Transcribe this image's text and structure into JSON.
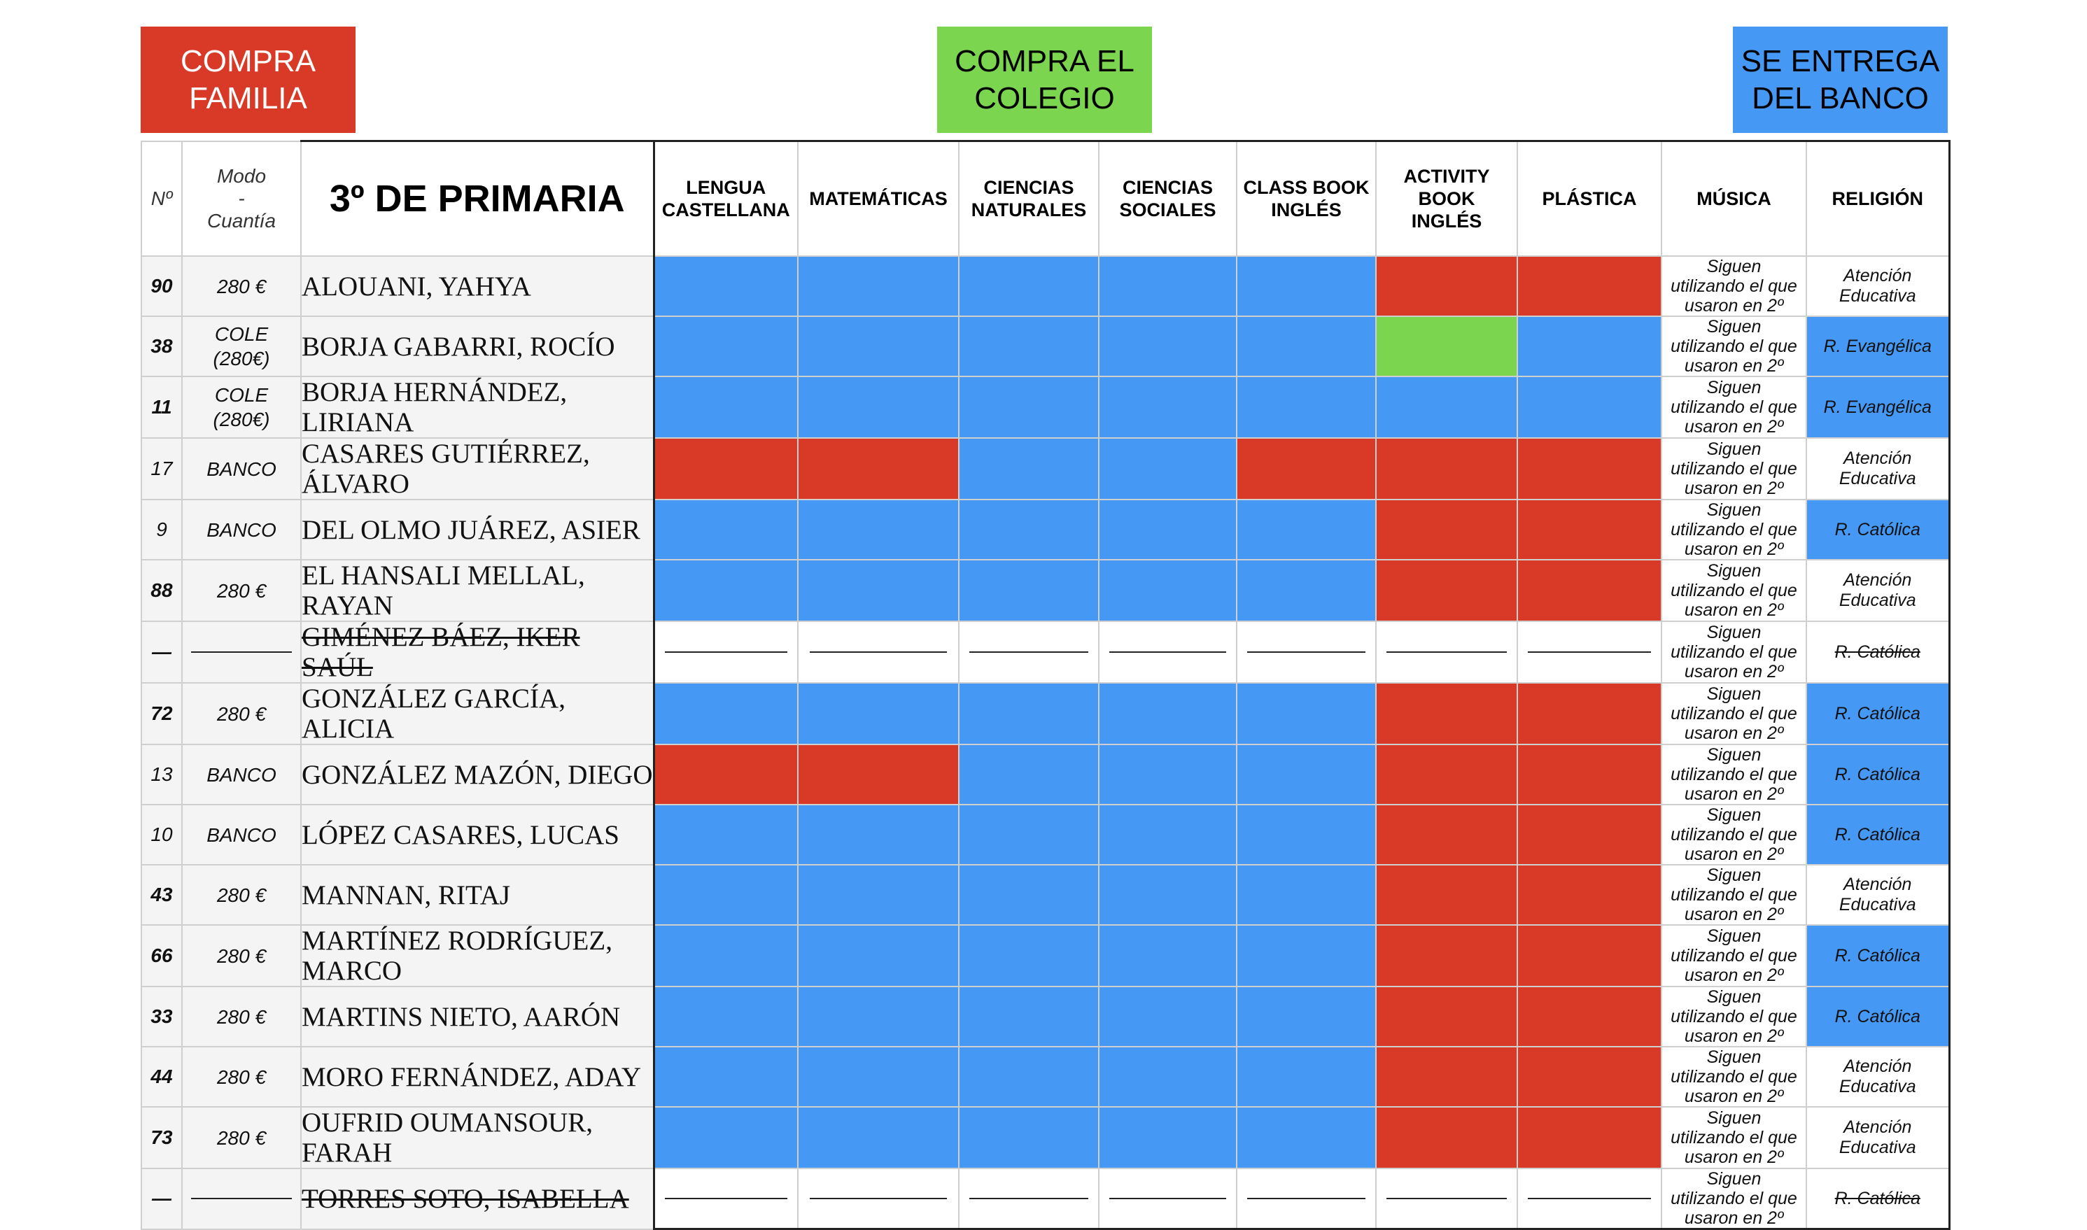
{
  "legend": [
    {
      "label_line1": "COMPRA",
      "label_line2": "FAMILIA",
      "color": "#d93a28"
    },
    {
      "label_line1": "COMPRA EL",
      "label_line2": "COLEGIO",
      "color": "#7bd54f"
    },
    {
      "label_line1": "SE ENTREGA",
      "label_line2": "DEL BANCO",
      "color": "#4598f4"
    }
  ],
  "header": {
    "num": "Nº",
    "mode_line1": "Modo",
    "mode_line2": "-",
    "mode_line3": "Cuantía",
    "course": "3º DE PRIMARIA",
    "subjects": [
      {
        "line1": "LENGUA",
        "line2": "CASTELLANA",
        "line3": ""
      },
      {
        "line1": "MATEMÁTICAS",
        "line2": "",
        "line3": ""
      },
      {
        "line1": "CIENCIAS",
        "line2": "NATURALES",
        "line3": ""
      },
      {
        "line1": "CIENCIAS",
        "line2": "SOCIALES",
        "line3": ""
      },
      {
        "line1": "CLASS BOOK",
        "line2": "INGLÉS",
        "line3": ""
      },
      {
        "line1": "ACTIVITY",
        "line2": "BOOK",
        "line3": "INGLÉS"
      },
      {
        "line1": "PLÁSTICA",
        "line2": "",
        "line3": ""
      },
      {
        "line1": "MÚSICA",
        "line2": "",
        "line3": ""
      },
      {
        "line1": "RELIGIÓN",
        "line2": "",
        "line3": ""
      }
    ]
  },
  "status_colors": {
    "B": "#4598f4",
    "R": "#d93a28",
    "G": "#7bd54f"
  },
  "musica_note": {
    "line1": "Siguen",
    "line2": "utilizando el que",
    "line3": "usaron en 2º"
  },
  "students": [
    {
      "num": "90",
      "num_bold": true,
      "mode1": "280 €",
      "mode2": "",
      "name1": "ALOUANI, YAHYA",
      "name2": "",
      "withdrawn": false,
      "books": [
        "B",
        "B",
        "B",
        "B",
        "B",
        "R",
        "R"
      ],
      "religion1": "Atención",
      "religion2": "Educativa",
      "religion_blue": false
    },
    {
      "num": "38",
      "num_bold": true,
      "mode1": "COLE",
      "mode2": "(280€)",
      "name1": "BORJA GABARRI, ROCÍO",
      "name2": "",
      "withdrawn": false,
      "books": [
        "B",
        "B",
        "B",
        "B",
        "B",
        "G",
        "B"
      ],
      "religion1": "R. Evangélica",
      "religion2": "",
      "religion_blue": true
    },
    {
      "num": "11",
      "num_bold": true,
      "mode1": "COLE",
      "mode2": "(280€)",
      "name1": "BORJA HERNÁNDEZ,",
      "name2": "LIRIANA",
      "withdrawn": false,
      "books": [
        "B",
        "B",
        "B",
        "B",
        "B",
        "B",
        "B"
      ],
      "religion1": "R. Evangélica",
      "religion2": "",
      "religion_blue": true
    },
    {
      "num": "17",
      "num_bold": false,
      "mode1": "BANCO",
      "mode2": "",
      "name1": "CASARES GUTIÉRREZ,",
      "name2": "ÁLVARO",
      "withdrawn": false,
      "books": [
        "R",
        "R",
        "B",
        "B",
        "R",
        "R",
        "R"
      ],
      "religion1": "Atención",
      "religion2": "Educativa",
      "religion_blue": false
    },
    {
      "num": "9",
      "num_bold": false,
      "mode1": "BANCO",
      "mode2": "",
      "name1": "DEL OLMO JUÁREZ, ASIER",
      "name2": "",
      "withdrawn": false,
      "books": [
        "B",
        "B",
        "B",
        "B",
        "B",
        "R",
        "R"
      ],
      "religion1": "R. Católica",
      "religion2": "",
      "religion_blue": true
    },
    {
      "num": "88",
      "num_bold": true,
      "mode1": "280 €",
      "mode2": "",
      "name1": "EL HANSALI MELLAL,",
      "name2": "RAYAN",
      "withdrawn": false,
      "books": [
        "B",
        "B",
        "B",
        "B",
        "B",
        "R",
        "R"
      ],
      "religion1": "Atención",
      "religion2": "Educativa",
      "religion_blue": false
    },
    {
      "num": "—",
      "num_bold": true,
      "mode1": "",
      "mode2": "",
      "name1": "GIMÉNEZ BÁEZ, IKER",
      "name2": "SAÚL",
      "withdrawn": true,
      "books": [
        "W",
        "W",
        "W",
        "W",
        "W",
        "W",
        "W"
      ],
      "religion1": "R. Católica",
      "religion2": "",
      "religion_blue": false
    },
    {
      "num": "72",
      "num_bold": true,
      "mode1": "280 €",
      "mode2": "",
      "name1": "GONZÁLEZ GARCÍA,",
      "name2": "ALICIA",
      "withdrawn": false,
      "books": [
        "B",
        "B",
        "B",
        "B",
        "B",
        "R",
        "R"
      ],
      "religion1": "R. Católica",
      "religion2": "",
      "religion_blue": true
    },
    {
      "num": "13",
      "num_bold": false,
      "mode1": "BANCO",
      "mode2": "",
      "name1": "GONZÁLEZ MAZÓN, DIEGO",
      "name2": "",
      "withdrawn": false,
      "books": [
        "R",
        "R",
        "B",
        "B",
        "B",
        "R",
        "R"
      ],
      "religion1": "R. Católica",
      "religion2": "",
      "religion_blue": true
    },
    {
      "num": "10",
      "num_bold": false,
      "mode1": "BANCO",
      "mode2": "",
      "name1": "LÓPEZ CASARES, LUCAS",
      "name2": "",
      "withdrawn": false,
      "books": [
        "B",
        "B",
        "B",
        "B",
        "B",
        "R",
        "R"
      ],
      "religion1": "R. Católica",
      "religion2": "",
      "religion_blue": true
    },
    {
      "num": "43",
      "num_bold": true,
      "mode1": "280 €",
      "mode2": "",
      "name1": "MANNAN, RITAJ",
      "name2": "",
      "withdrawn": false,
      "books": [
        "B",
        "B",
        "B",
        "B",
        "B",
        "R",
        "R"
      ],
      "religion1": "Atención",
      "religion2": "Educativa",
      "religion_blue": false
    },
    {
      "num": "66",
      "num_bold": true,
      "mode1": "280 €",
      "mode2": "",
      "name1": "MARTÍNEZ RODRÍGUEZ,",
      "name2": "MARCO",
      "withdrawn": false,
      "books": [
        "B",
        "B",
        "B",
        "B",
        "B",
        "R",
        "R"
      ],
      "religion1": "R. Católica",
      "religion2": "",
      "religion_blue": true
    },
    {
      "num": "33",
      "num_bold": true,
      "mode1": "280 €",
      "mode2": "",
      "name1": "MARTINS NIETO, AARÓN",
      "name2": "",
      "withdrawn": false,
      "books": [
        "B",
        "B",
        "B",
        "B",
        "B",
        "R",
        "R"
      ],
      "religion1": "R. Católica",
      "religion2": "",
      "religion_blue": true
    },
    {
      "num": "44",
      "num_bold": true,
      "mode1": "280 €",
      "mode2": "",
      "name1": "MORO FERNÁNDEZ, ADAY",
      "name2": "",
      "withdrawn": false,
      "books": [
        "B",
        "B",
        "B",
        "B",
        "B",
        "R",
        "R"
      ],
      "religion1": "Atención",
      "religion2": "Educativa",
      "religion_blue": false
    },
    {
      "num": "73",
      "num_bold": true,
      "mode1": "280 €",
      "mode2": "",
      "name1": "OUFRID OUMANSOUR,",
      "name2": "FARAH",
      "withdrawn": false,
      "books": [
        "B",
        "B",
        "B",
        "B",
        "B",
        "R",
        "R"
      ],
      "religion1": "Atención",
      "religion2": "Educativa",
      "religion_blue": false
    },
    {
      "num": "—",
      "num_bold": true,
      "mode1": "",
      "mode2": "",
      "name1": "TORRES SOTO, ISABELLA",
      "name2": "",
      "withdrawn": true,
      "books": [
        "W",
        "W",
        "W",
        "W",
        "W",
        "W",
        "W"
      ],
      "religion1": "R. Católica",
      "religion2": "",
      "religion_blue": false
    }
  ]
}
